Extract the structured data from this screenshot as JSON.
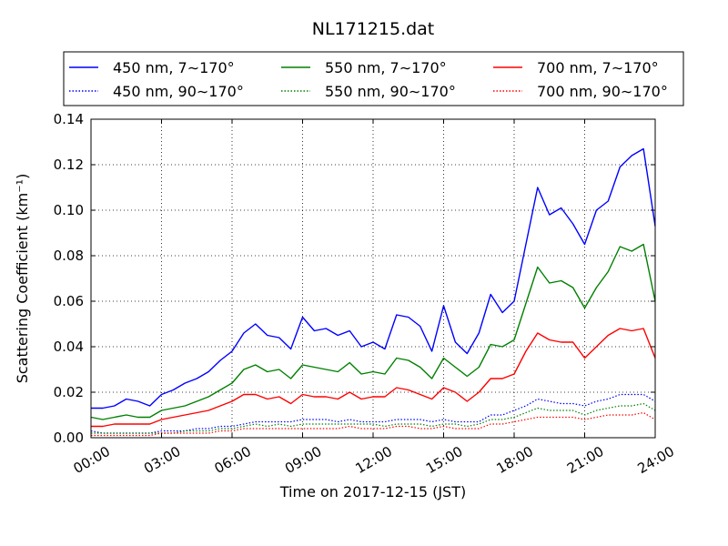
{
  "chart_data": {
    "type": "line",
    "title": "NL171215.dat",
    "xlabel": "Time on 2017-12-15 (JST)",
    "ylabel": "Scattering Coefficient (km⁻¹)",
    "x_unit": "hours",
    "xlim": [
      0,
      24
    ],
    "ylim": [
      0,
      0.14
    ],
    "xticks": [
      "00:00",
      "03:00",
      "06:00",
      "09:00",
      "12:00",
      "15:00",
      "18:00",
      "21:00",
      "24:00"
    ],
    "yticks": [
      "0.00",
      "0.02",
      "0.04",
      "0.06",
      "0.08",
      "0.10",
      "0.12",
      "0.14"
    ],
    "grid": true,
    "legend_position": "top",
    "x": [
      0,
      0.5,
      1,
      1.5,
      2,
      2.5,
      3,
      3.5,
      4,
      4.5,
      5,
      5.5,
      6,
      6.5,
      7,
      7.5,
      8,
      8.5,
      9,
      9.5,
      10,
      10.5,
      11,
      11.5,
      12,
      12.5,
      13,
      13.5,
      14,
      14.5,
      15,
      15.5,
      16,
      16.5,
      17,
      17.5,
      18,
      18.5,
      19,
      19.5,
      20,
      20.5,
      21,
      21.5,
      22,
      22.5,
      23,
      23.5,
      24
    ],
    "series": [
      {
        "name": "450 nm, 7∼170°",
        "color": "#0000ff",
        "style": "solid",
        "values": [
          0.013,
          0.013,
          0.014,
          0.017,
          0.016,
          0.014,
          0.019,
          0.021,
          0.024,
          0.026,
          0.029,
          0.034,
          0.038,
          0.046,
          0.05,
          0.045,
          0.044,
          0.039,
          0.053,
          0.047,
          0.048,
          0.045,
          0.047,
          0.04,
          0.042,
          0.039,
          0.054,
          0.053,
          0.049,
          0.038,
          0.058,
          0.042,
          0.037,
          0.046,
          0.063,
          0.055,
          0.06,
          0.085,
          0.11,
          0.098,
          0.101,
          0.094,
          0.085,
          0.1,
          0.104,
          0.119,
          0.124,
          0.127,
          0.093
        ]
      },
      {
        "name": "550 nm, 7∼170°",
        "color": "#008000",
        "style": "solid",
        "values": [
          0.009,
          0.008,
          0.009,
          0.01,
          0.009,
          0.009,
          0.012,
          0.013,
          0.014,
          0.016,
          0.018,
          0.021,
          0.024,
          0.03,
          0.032,
          0.029,
          0.03,
          0.026,
          0.032,
          0.031,
          0.03,
          0.029,
          0.033,
          0.028,
          0.029,
          0.028,
          0.035,
          0.034,
          0.031,
          0.026,
          0.035,
          0.031,
          0.027,
          0.031,
          0.041,
          0.04,
          0.043,
          0.059,
          0.075,
          0.068,
          0.069,
          0.066,
          0.057,
          0.066,
          0.073,
          0.084,
          0.082,
          0.085,
          0.06
        ]
      },
      {
        "name": "700 nm, 7∼170°",
        "color": "#ff0000",
        "style": "solid",
        "values": [
          0.005,
          0.005,
          0.006,
          0.006,
          0.006,
          0.006,
          0.008,
          0.009,
          0.01,
          0.011,
          0.012,
          0.014,
          0.016,
          0.019,
          0.019,
          0.017,
          0.018,
          0.015,
          0.019,
          0.018,
          0.018,
          0.017,
          0.02,
          0.017,
          0.018,
          0.018,
          0.022,
          0.021,
          0.019,
          0.017,
          0.022,
          0.02,
          0.016,
          0.02,
          0.026,
          0.026,
          0.028,
          0.038,
          0.046,
          0.043,
          0.042,
          0.042,
          0.035,
          0.04,
          0.045,
          0.048,
          0.047,
          0.048,
          0.035
        ]
      },
      {
        "name": "450 nm, 90∼170°",
        "color": "#0000ff",
        "style": "dotted",
        "values": [
          0.003,
          0.002,
          0.002,
          0.002,
          0.002,
          0.002,
          0.003,
          0.003,
          0.003,
          0.004,
          0.004,
          0.005,
          0.005,
          0.006,
          0.007,
          0.007,
          0.007,
          0.007,
          0.008,
          0.008,
          0.008,
          0.007,
          0.008,
          0.007,
          0.007,
          0.007,
          0.008,
          0.008,
          0.008,
          0.007,
          0.008,
          0.007,
          0.007,
          0.007,
          0.01,
          0.01,
          0.012,
          0.014,
          0.017,
          0.016,
          0.015,
          0.015,
          0.014,
          0.016,
          0.017,
          0.019,
          0.019,
          0.019,
          0.016
        ]
      },
      {
        "name": "550 nm, 90∼170°",
        "color": "#008000",
        "style": "dotted",
        "values": [
          0.002,
          0.002,
          0.002,
          0.002,
          0.002,
          0.002,
          0.002,
          0.002,
          0.003,
          0.003,
          0.003,
          0.004,
          0.004,
          0.005,
          0.006,
          0.005,
          0.006,
          0.005,
          0.006,
          0.006,
          0.006,
          0.006,
          0.006,
          0.006,
          0.006,
          0.005,
          0.006,
          0.006,
          0.006,
          0.005,
          0.006,
          0.006,
          0.005,
          0.006,
          0.008,
          0.008,
          0.009,
          0.011,
          0.013,
          0.012,
          0.012,
          0.012,
          0.01,
          0.012,
          0.013,
          0.014,
          0.014,
          0.015,
          0.012
        ]
      },
      {
        "name": "700 nm, 90∼170°",
        "color": "#ff0000",
        "style": "dotted",
        "values": [
          0.001,
          0.001,
          0.001,
          0.001,
          0.001,
          0.001,
          0.002,
          0.002,
          0.002,
          0.002,
          0.002,
          0.003,
          0.003,
          0.004,
          0.004,
          0.004,
          0.004,
          0.004,
          0.004,
          0.004,
          0.004,
          0.004,
          0.005,
          0.004,
          0.004,
          0.004,
          0.005,
          0.005,
          0.004,
          0.004,
          0.005,
          0.004,
          0.004,
          0.004,
          0.006,
          0.006,
          0.007,
          0.008,
          0.009,
          0.009,
          0.009,
          0.009,
          0.008,
          0.009,
          0.01,
          0.01,
          0.01,
          0.011,
          0.008
        ]
      }
    ]
  }
}
